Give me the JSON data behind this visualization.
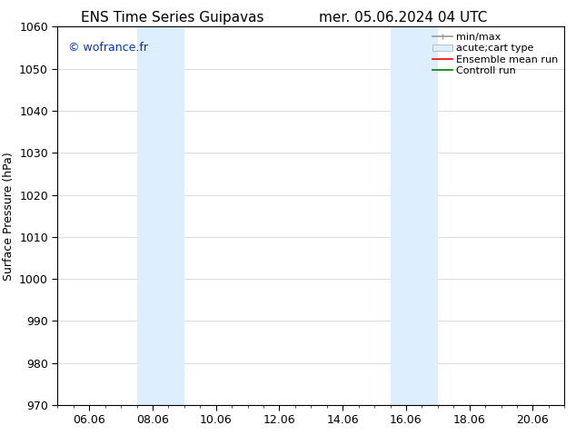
{
  "title_left": "ENS Time Series Guipavas",
  "title_right": "mer. 05.06.2024 04 UTC",
  "ylabel": "Surface Pressure (hPa)",
  "ylim": [
    970,
    1060
  ],
  "yticks": [
    970,
    980,
    990,
    1000,
    1010,
    1020,
    1030,
    1040,
    1050,
    1060
  ],
  "xtick_labels": [
    "06.06",
    "08.06",
    "10.06",
    "12.06",
    "14.06",
    "16.06",
    "18.06",
    "20.06"
  ],
  "xtick_positions": [
    1.0,
    3.0,
    5.0,
    7.0,
    9.0,
    11.0,
    13.0,
    15.0
  ],
  "xlim": [
    0,
    16
  ],
  "shaded_regions": [
    {
      "xstart": 2.5,
      "xend": 4.0
    },
    {
      "xstart": 10.5,
      "xend": 12.0
    }
  ],
  "shaded_color": "#ddeeff",
  "background_color": "#ffffff",
  "watermark": "© wofrance.fr",
  "watermark_color": "#0033cc",
  "legend_labels": [
    "min/max",
    "acute;cart type",
    "Ensemble mean run",
    "Controll run"
  ],
  "legend_line_colors": [
    "#aaaaaa",
    "#c8dff0",
    "#ff0000",
    "#008000"
  ],
  "grid_color": "#cccccc",
  "title_fontsize": 11,
  "axis_label_fontsize": 9,
  "tick_fontsize": 9,
  "legend_fontsize": 8,
  "watermark_fontsize": 9
}
